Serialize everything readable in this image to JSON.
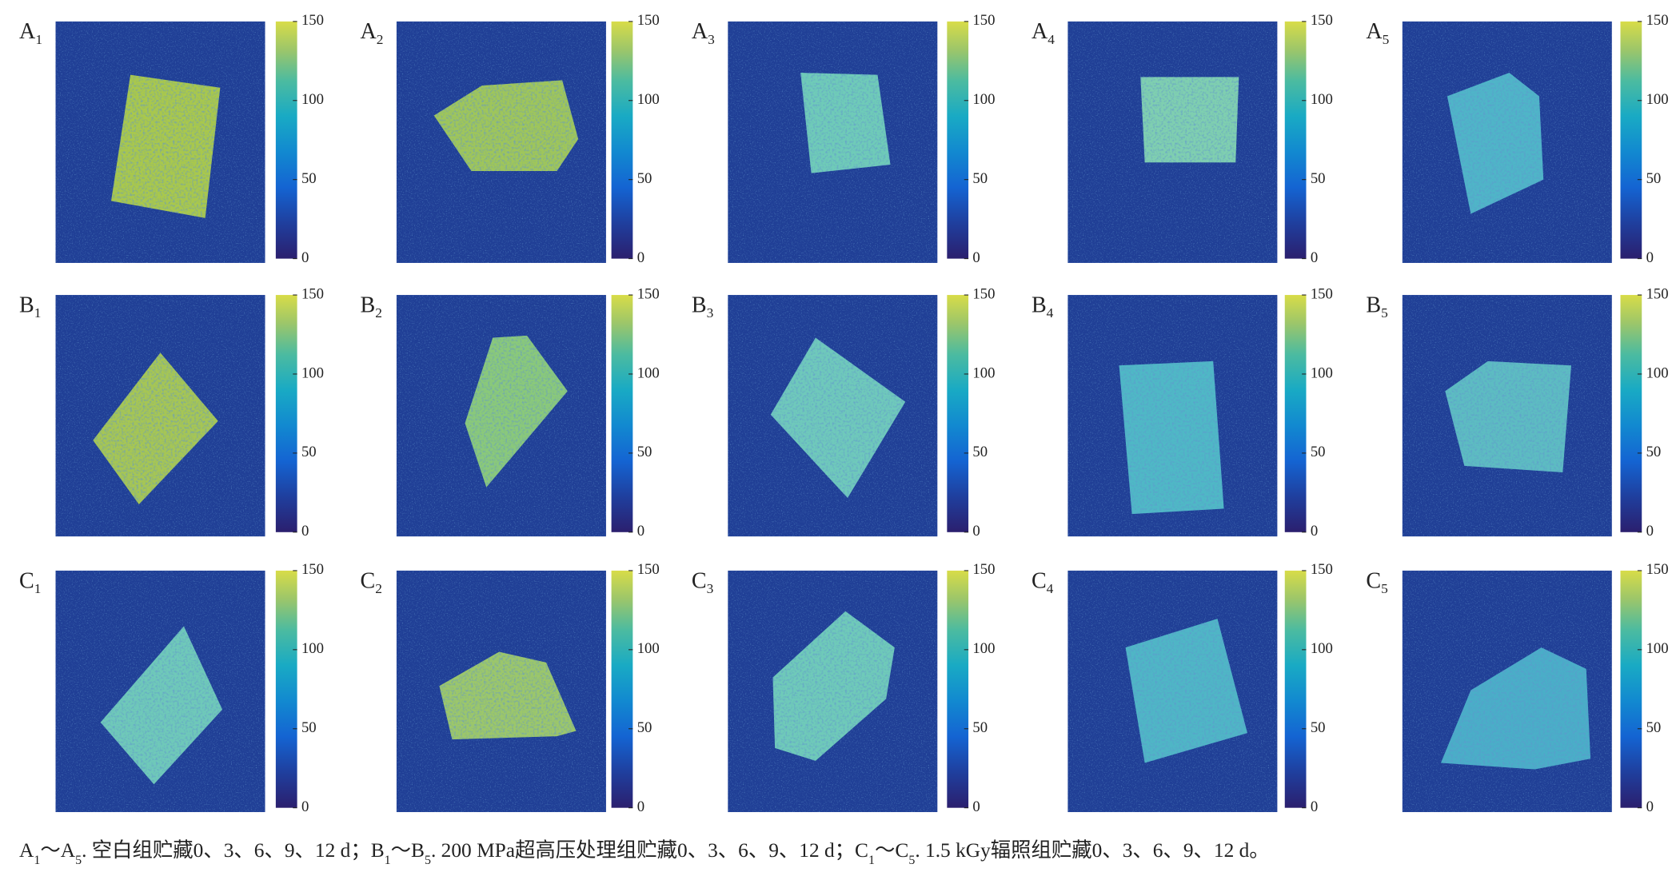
{
  "panels": [
    [
      {
        "letter": "A",
        "sub": "1"
      },
      {
        "letter": "A",
        "sub": "2"
      },
      {
        "letter": "A",
        "sub": "3"
      },
      {
        "letter": "A",
        "sub": "4"
      },
      {
        "letter": "A",
        "sub": "5"
      }
    ],
    [
      {
        "letter": "B",
        "sub": "1"
      },
      {
        "letter": "B",
        "sub": "2"
      },
      {
        "letter": "B",
        "sub": "3"
      },
      {
        "letter": "B",
        "sub": "4"
      },
      {
        "letter": "B",
        "sub": "5"
      }
    ],
    [
      {
        "letter": "C",
        "sub": "1"
      },
      {
        "letter": "C",
        "sub": "2"
      },
      {
        "letter": "C",
        "sub": "3"
      },
      {
        "letter": "C",
        "sub": "4"
      },
      {
        "letter": "C",
        "sub": "5"
      }
    ]
  ],
  "colorbar": {
    "lim": [
      0,
      150
    ],
    "ticks": [
      0,
      50,
      100,
      150
    ]
  },
  "caption": [
    {
      "text": "A"
    },
    {
      "sub": "1"
    },
    {
      "text": "～A"
    },
    {
      "sub": "5"
    },
    {
      "text": ". 空白组贮藏0、3、6、9、12 d；B"
    },
    {
      "sub": "1"
    },
    {
      "text": "～B"
    },
    {
      "sub": "5"
    },
    {
      "text": ". 200 MPa超高压处理组贮藏0、3、6、9、12 d；C"
    },
    {
      "sub": "1"
    },
    {
      "text": "～C"
    },
    {
      "sub": "5"
    },
    {
      "text": ". 1.5 kGy辐照组贮藏0、3、6、9、12 d。"
    }
  ]
}
